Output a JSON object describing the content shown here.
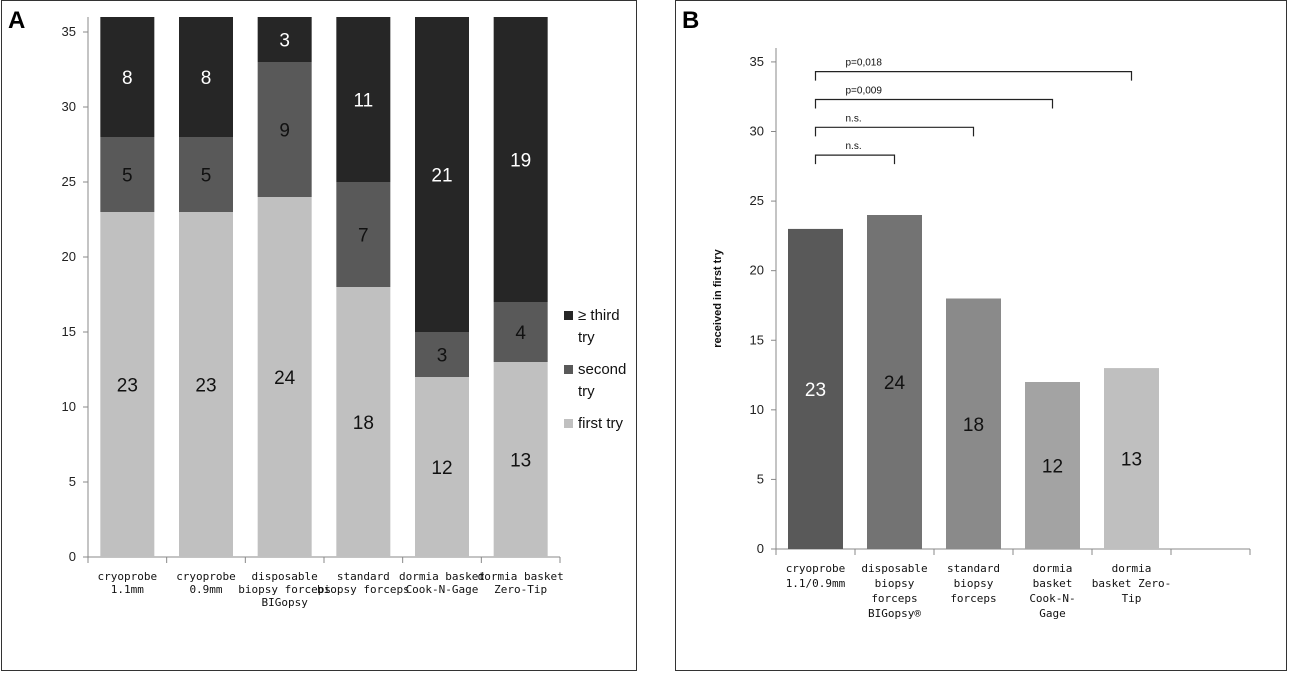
{
  "chart_data": [
    {
      "panel": "A",
      "type": "bar",
      "stacked": true,
      "categories": [
        [
          "cryoprobe",
          "1.1mm"
        ],
        [
          "cryoprobe",
          "0.9mm"
        ],
        [
          "disposable",
          "biopsy forceps",
          "BIGopsy"
        ],
        [
          "standard",
          "biopsy forceps"
        ],
        [
          "dormia basket",
          "Cook-N-Gage"
        ],
        [
          "dormia basket",
          "Zero-Tip"
        ]
      ],
      "series": [
        {
          "name": [
            "first try"
          ],
          "values": [
            23,
            23,
            24,
            18,
            12,
            13
          ],
          "color": "#c0c0c0",
          "label_color": "#111111"
        },
        {
          "name": [
            "second",
            "try"
          ],
          "values": [
            5,
            5,
            9,
            7,
            3,
            4
          ],
          "color": "#595959",
          "label_color": "#111111"
        },
        {
          "name": [
            "≥ third",
            "try"
          ],
          "values": [
            8,
            8,
            3,
            11,
            21,
            19
          ],
          "color": "#262626",
          "label_color": "#ffffff"
        }
      ],
      "ylim": [
        0,
        36
      ],
      "yticks": [
        0,
        5,
        10,
        15,
        20,
        25,
        30,
        35
      ],
      "legend_order": [
        2,
        1,
        0
      ],
      "legend": "right"
    },
    {
      "panel": "B",
      "type": "bar",
      "categories": [
        [
          "cryoprobe",
          "1.1/0.9mm"
        ],
        [
          "disposable",
          "biopsy",
          "forceps",
          "BIGopsy®"
        ],
        [
          "standard",
          "biopsy",
          "forceps"
        ],
        [
          "dormia",
          "basket",
          "Cook-N-",
          "Gage"
        ],
        [
          "dormia",
          "basket Zero-",
          "Tip"
        ],
        [
          ""
        ]
      ],
      "values": [
        23,
        24,
        18,
        12,
        13,
        null
      ],
      "colors": [
        "#595959",
        "#737373",
        "#8a8a8a",
        "#a3a3a3",
        "#bfbfbf",
        "#ffffff"
      ],
      "label_colors": [
        "#ffffff",
        "#111111",
        "#111111",
        "#111111",
        "#111111",
        "#111111"
      ],
      "ylabel": "received in first try",
      "ylim": [
        0,
        36
      ],
      "yticks": [
        0,
        5,
        10,
        15,
        20,
        25,
        30,
        35
      ],
      "significance": [
        {
          "from": 0,
          "to": 1,
          "y": 28.3,
          "label": "n.s."
        },
        {
          "from": 0,
          "to": 2,
          "y": 30.3,
          "label": "n.s."
        },
        {
          "from": 0,
          "to": 3,
          "y": 32.3,
          "label": "p=0,009"
        },
        {
          "from": 0,
          "to": 4,
          "y": 34.3,
          "label": "p=0,018"
        }
      ]
    }
  ],
  "panels": {
    "a_label": "A",
    "b_label": "B"
  }
}
